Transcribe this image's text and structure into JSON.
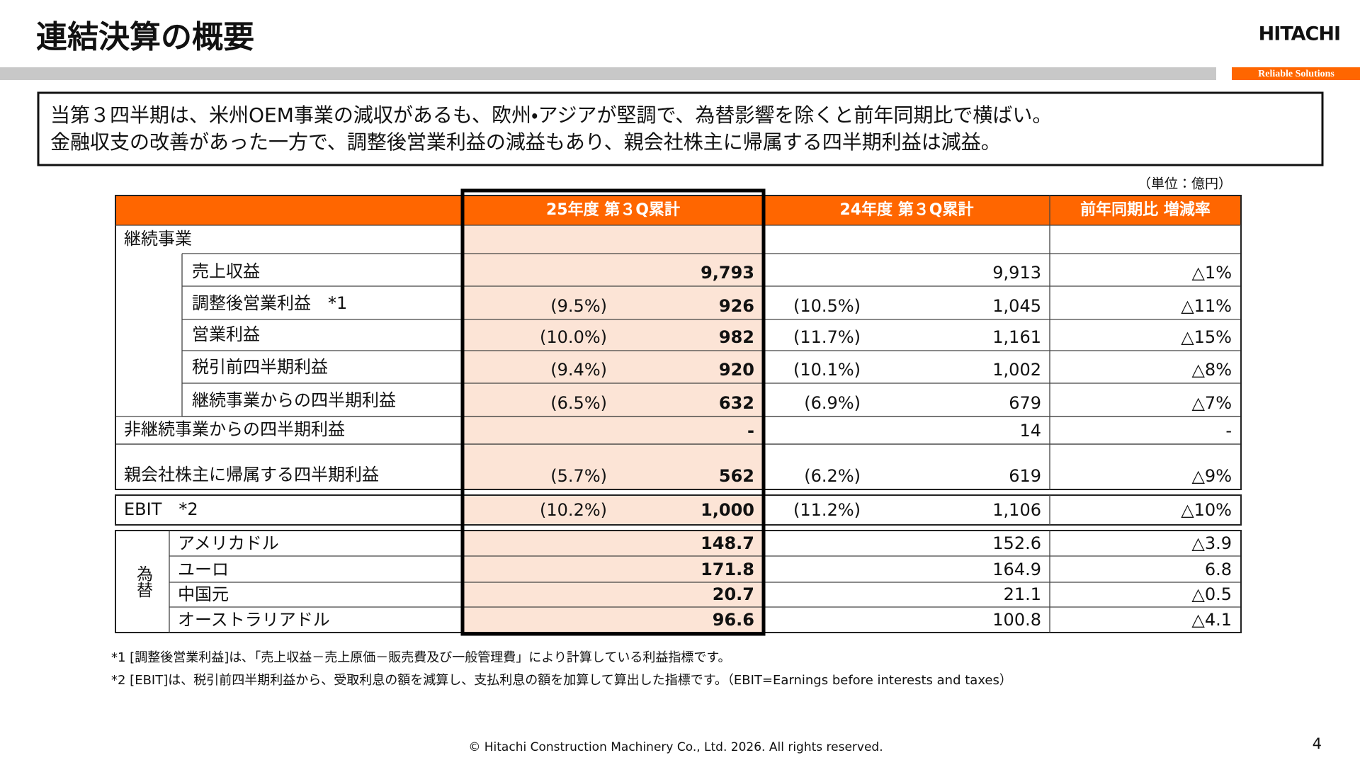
{
  "header": {
    "title": "連結決算の概要",
    "logo": "HITACHI",
    "tagline": "Reliable Solutions"
  },
  "summary": [
    "当第３四半期は、米州OEM事業の減収があるも、欧州・アジアが堅調で、為替影響を除くと前年同期比で横ばい。",
    "金融収支の改善があった一方で、調整後営業利益の減益もあり、親会社株主に帰属する四半期利益は減益。"
  ],
  "table": {
    "unit": "（単位：億円）",
    "columns": [
      "25年度 第３Q累計",
      "24年度 第３Q累計",
      "前年同期比 増減率"
    ],
    "continuing": {
      "label": "継続事業",
      "rows": [
        {
          "label": "売上収益",
          "current": "9,793",
          "prior": "9,913",
          "change": "△1%"
        },
        {
          "label": "調整後営業利益　*1",
          "current_ratio": "(9.5%)",
          "current": "926",
          "prior_ratio": "(10.5%)",
          "prior": "1,045",
          "change": "△11%"
        },
        {
          "label": "営業利益",
          "current_ratio": "(10.0%)",
          "current": "982",
          "prior_ratio": "(11.7%)",
          "prior": "1,161",
          "change": "△15%"
        },
        {
          "label": "税引前四半期利益",
          "current_ratio": "(9.4%)",
          "current": "920",
          "prior_ratio": "(10.1%)",
          "prior": "1,002",
          "change": "△8%"
        },
        {
          "label": "継続事業からの四半期利益",
          "current_ratio": "(6.5%)",
          "current": "632",
          "prior_ratio": "(6.9%)",
          "prior": "679",
          "change": "△7%"
        }
      ]
    },
    "rows": [
      {
        "label": "非継続事業からの四半期利益",
        "current": "-",
        "prior": "14",
        "change": "-"
      },
      {
        "label": "親会社株主に帰属する四半期利益",
        "current_ratio": "(5.7%)",
        "current": "562",
        "prior_ratio": "(6.2%)",
        "prior": "619",
        "change": "△9%"
      }
    ],
    "ebit": {
      "label": "EBIT　*2",
      "current_ratio": "(10.2%)",
      "current": "1,000",
      "prior_ratio": "(11.2%)",
      "prior": "1,106",
      "change": "△10%"
    },
    "fx": {
      "label": "為替",
      "rows": [
        {
          "label": "アメリカドル",
          "current": "148.7",
          "prior": "152.6",
          "change": "△3.9"
        },
        {
          "label": "ユーロ",
          "current": "171.8",
          "prior": "164.9",
          "change": "6.8"
        },
        {
          "label": "中国元",
          "current": "20.7",
          "prior": "21.1",
          "change": "△0.5"
        },
        {
          "label": "オーストラリアドル",
          "current": "96.6",
          "prior": "100.8",
          "change": "△4.1"
        }
      ]
    }
  },
  "footnotes": [
    "*1 [調整後営業利益]は､「売上収益－売上原価－販売費及び一般管理費」により計算している利益指標です。",
    "*2 [EBIT]は、税引前四半期利益から、受取利息の額を減算し、支払利息の額を加算して算出した指標です。（EBIT=Earnings before interests and taxes）"
  ],
  "footer": {
    "copyright": "© Hitachi Construction Machinery Co., Ltd. 2026. All rights reserved.",
    "page_number": "4"
  }
}
